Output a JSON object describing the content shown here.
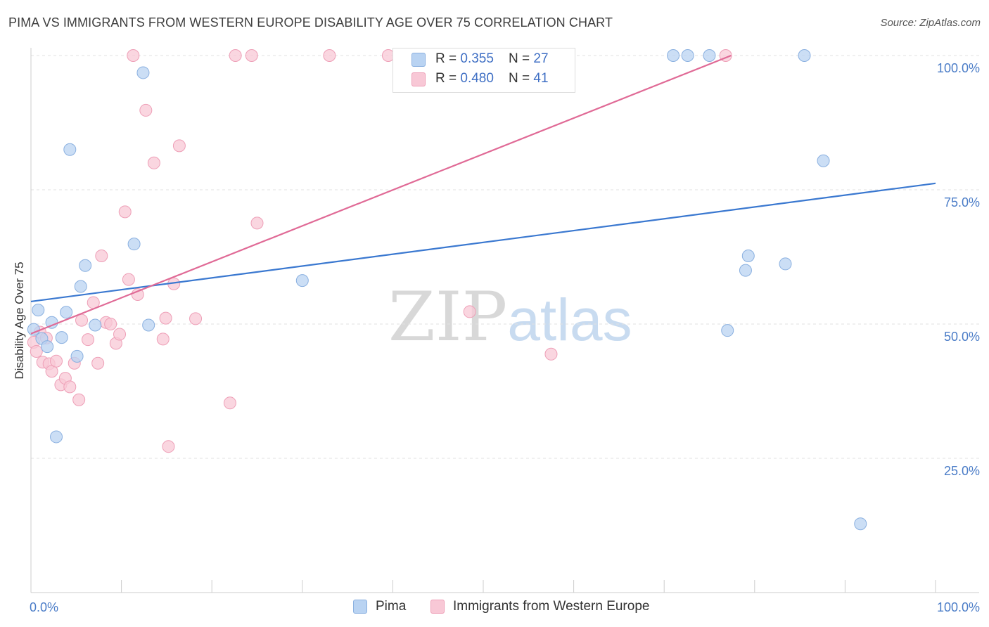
{
  "header": {
    "title": "PIMA VS IMMIGRANTS FROM WESTERN EUROPE DISABILITY AGE OVER 75 CORRELATION CHART",
    "source": "Source: ZipAtlas.com"
  },
  "watermark": {
    "zip": "ZIP",
    "atlas": "atlas"
  },
  "legend": {
    "pima": {
      "r_label": "R = ",
      "r_value": "0.355",
      "n_label": "N = ",
      "n_value": "27",
      "color": "#b9d3f2",
      "stroke": "#8ab0e0"
    },
    "immigrants": {
      "r_label": "R = ",
      "r_value": "0.480",
      "n_label": "N = ",
      "n_value": "41",
      "color": "#f8c8d6",
      "stroke": "#ee9fb7"
    }
  },
  "bottom_legend": {
    "pima": "Pima",
    "immigrants": "Immigrants from Western Europe"
  },
  "chart_data": {
    "type": "scatter",
    "title": "PIMA VS IMMIGRANTS FROM WESTERN EUROPE DISABILITY AGE OVER 75 CORRELATION CHART",
    "xlabel": "",
    "ylabel": "Disability Age Over 75",
    "xlim": [
      0,
      100
    ],
    "ylim": [
      0,
      100
    ],
    "x_tick_labels": [
      "0.0%",
      "100.0%"
    ],
    "y_ticks": [
      {
        "value": 25,
        "label": "25.0%"
      },
      {
        "value": 50,
        "label": "50.0%"
      },
      {
        "value": 75,
        "label": "75.0%"
      },
      {
        "value": 100,
        "label": "100.0%"
      }
    ],
    "series": [
      {
        "name": "Pima",
        "color": "#b9d3f2",
        "stroke": "#8ab0e0",
        "line_color": "#3a78d0",
        "trend": {
          "x": [
            0,
            100
          ],
          "y": [
            54.2,
            76.2
          ]
        },
        "points": [
          {
            "x": 0.3,
            "y": 49.0
          },
          {
            "x": 0.8,
            "y": 52.6
          },
          {
            "x": 1.2,
            "y": 47.3
          },
          {
            "x": 1.8,
            "y": 45.8
          },
          {
            "x": 2.3,
            "y": 50.3
          },
          {
            "x": 2.8,
            "y": 29.0
          },
          {
            "x": 3.4,
            "y": 47.5
          },
          {
            "x": 3.9,
            "y": 52.2
          },
          {
            "x": 4.3,
            "y": 82.5
          },
          {
            "x": 5.1,
            "y": 44.0
          },
          {
            "x": 5.5,
            "y": 57.0
          },
          {
            "x": 6.0,
            "y": 60.9
          },
          {
            "x": 7.1,
            "y": 49.8
          },
          {
            "x": 11.4,
            "y": 64.9
          },
          {
            "x": 12.4,
            "y": 96.8
          },
          {
            "x": 13.0,
            "y": 49.8
          },
          {
            "x": 30.0,
            "y": 58.1
          },
          {
            "x": 71.0,
            "y": 100.0
          },
          {
            "x": 72.6,
            "y": 100.0
          },
          {
            "x": 75.0,
            "y": 100.0
          },
          {
            "x": 77.0,
            "y": 48.8
          },
          {
            "x": 79.0,
            "y": 60.0
          },
          {
            "x": 79.3,
            "y": 62.7
          },
          {
            "x": 83.4,
            "y": 61.2
          },
          {
            "x": 85.5,
            "y": 100.0
          },
          {
            "x": 87.6,
            "y": 80.4
          },
          {
            "x": 91.7,
            "y": 12.8
          }
        ]
      },
      {
        "name": "Immigrants from Western Europe",
        "color": "#f8c8d6",
        "stroke": "#ee9fb7",
        "line_color": "#e06a96",
        "trend": {
          "x": [
            0,
            77.4
          ],
          "y": [
            48.2,
            100.0
          ]
        },
        "points": [
          {
            "x": 0.3,
            "y": 46.6
          },
          {
            "x": 0.6,
            "y": 44.9
          },
          {
            "x": 1.0,
            "y": 48.5
          },
          {
            "x": 1.3,
            "y": 42.9
          },
          {
            "x": 1.7,
            "y": 47.4
          },
          {
            "x": 2.0,
            "y": 42.6
          },
          {
            "x": 2.3,
            "y": 41.2
          },
          {
            "x": 2.8,
            "y": 43.1
          },
          {
            "x": 3.3,
            "y": 38.7
          },
          {
            "x": 3.8,
            "y": 39.9
          },
          {
            "x": 4.3,
            "y": 38.3
          },
          {
            "x": 4.8,
            "y": 42.7
          },
          {
            "x": 5.3,
            "y": 35.9
          },
          {
            "x": 5.6,
            "y": 50.7
          },
          {
            "x": 6.3,
            "y": 47.1
          },
          {
            "x": 6.9,
            "y": 54.0
          },
          {
            "x": 7.4,
            "y": 42.7
          },
          {
            "x": 7.8,
            "y": 62.7
          },
          {
            "x": 8.3,
            "y": 50.3
          },
          {
            "x": 8.8,
            "y": 50.0
          },
          {
            "x": 9.4,
            "y": 46.4
          },
          {
            "x": 9.8,
            "y": 48.1
          },
          {
            "x": 10.4,
            "y": 70.9
          },
          {
            "x": 10.8,
            "y": 58.3
          },
          {
            "x": 11.8,
            "y": 55.5
          },
          {
            "x": 12.7,
            "y": 89.8
          },
          {
            "x": 13.6,
            "y": 80.0
          },
          {
            "x": 14.6,
            "y": 47.2
          },
          {
            "x": 14.9,
            "y": 51.1
          },
          {
            "x": 15.2,
            "y": 27.2
          },
          {
            "x": 15.8,
            "y": 57.5
          },
          {
            "x": 16.4,
            "y": 83.2
          },
          {
            "x": 18.2,
            "y": 51.0
          },
          {
            "x": 22.0,
            "y": 35.3
          },
          {
            "x": 25.0,
            "y": 68.8
          },
          {
            "x": 48.5,
            "y": 52.3
          },
          {
            "x": 57.5,
            "y": 44.4
          },
          {
            "x": 76.8,
            "y": 100.0
          },
          {
            "x": 11.3,
            "y": 100.0
          },
          {
            "x": 22.6,
            "y": 100.0
          },
          {
            "x": 24.4,
            "y": 100.0
          }
        ]
      }
    ],
    "extra_top_points": {
      "series": "Immigrants from Western Europe",
      "points": [
        {
          "x": 33.0,
          "y": 100.0
        },
        {
          "x": 39.5,
          "y": 100.0
        }
      ]
    }
  }
}
